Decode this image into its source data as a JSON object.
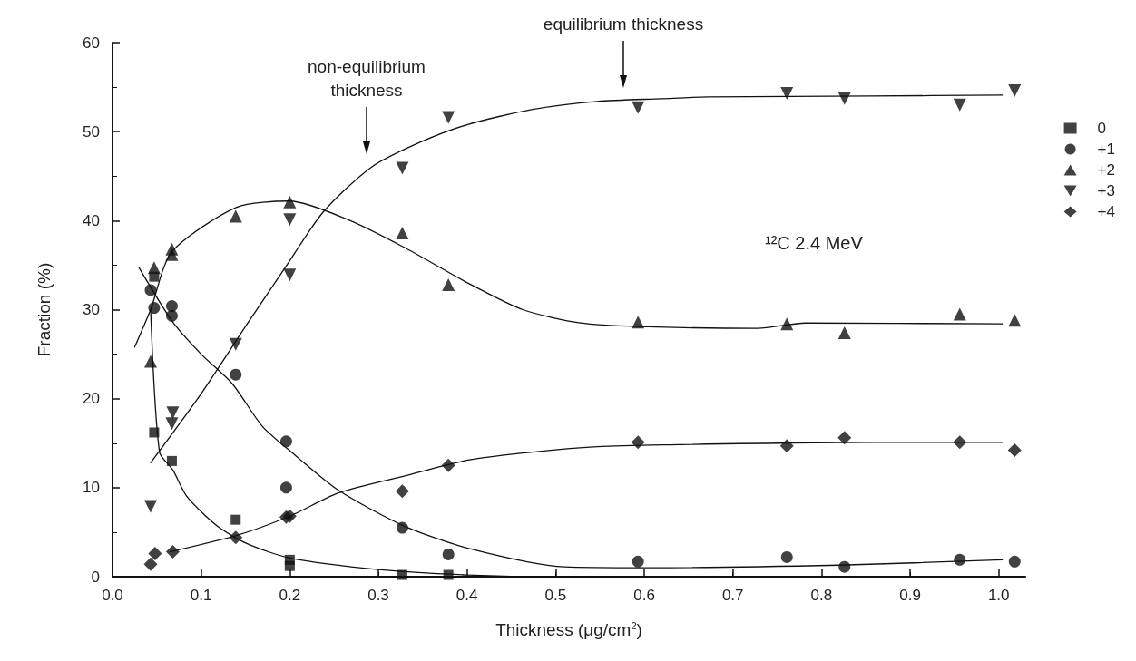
{
  "chart_data": {
    "type": "scatter",
    "xlabel": "Thickness (μg/cm$^{2}$)",
    "ylabel": "Fraction (%)",
    "xlim": [
      0,
      1.03
    ],
    "ylim": [
      0,
      60
    ],
    "xticks": [
      {
        "value": 0,
        "label": "0.0"
      },
      {
        "value": 0.1,
        "label": "0.1"
      },
      {
        "value": 0.2,
        "label": "0.2"
      },
      {
        "value": 0.3,
        "label": "0.3"
      },
      {
        "value": 0.4,
        "label": "0.4"
      },
      {
        "value": 0.5,
        "label": "0.5"
      },
      {
        "value": 0.6,
        "label": "0.6"
      },
      {
        "value": 0.7,
        "label": "0.7"
      },
      {
        "value": 0.8,
        "label": "0.8"
      },
      {
        "value": 0.9,
        "label": "0.9"
      },
      {
        "value": 1,
        "label": "1.0"
      }
    ],
    "yticks": [
      0,
      10,
      20,
      30,
      40,
      50,
      60
    ],
    "grid": false,
    "legend": "right",
    "annotations": [
      "¹²C 2.4 MeV",
      "non-equilibrium\nthickness",
      "equilibrium thickness"
    ],
    "series": [
      {
        "name": "0",
        "color": "#111111",
        "marker": "square",
        "x": [
          0.047,
          0.047,
          0.067,
          0.139,
          0.2,
          0.2,
          0.327,
          0.379
        ],
        "values": [
          33.7,
          16.2,
          13.0,
          6.4,
          1.9,
          1.2,
          0.2,
          0.2
        ]
      },
      {
        "name": "+1",
        "color": "#111111",
        "marker": "circle",
        "x": [
          0.043,
          0.047,
          0.067,
          0.067,
          0.139,
          0.196,
          0.196,
          0.327,
          0.379,
          0.593,
          0.761,
          0.826,
          0.956,
          1.018
        ],
        "values": [
          32.2,
          30.2,
          30.4,
          29.3,
          22.7,
          15.2,
          10.0,
          5.5,
          2.5,
          1.7,
          2.2,
          1.1,
          1.9,
          1.7
        ]
      },
      {
        "name": "+2",
        "color": "#111111",
        "marker": "triangle",
        "x": [
          0.043,
          0.047,
          0.067,
          0.067,
          0.139,
          0.2,
          0.327,
          0.379,
          0.593,
          0.761,
          0.826,
          0.956,
          1.018
        ],
        "values": [
          24.2,
          34.7,
          36.8,
          36.2,
          40.5,
          42.1,
          38.6,
          32.8,
          28.6,
          28.4,
          27.4,
          29.5,
          28.8
        ]
      },
      {
        "name": "+3",
        "color": "#111111",
        "marker": "triangle-down",
        "x": [
          0.043,
          0.068,
          0.067,
          0.139,
          0.2,
          0.2,
          0.327,
          0.379,
          0.593,
          0.761,
          0.826,
          0.956,
          1.018
        ],
        "values": [
          7.9,
          18.4,
          17.2,
          26.1,
          40.1,
          33.9,
          45.9,
          51.6,
          52.7,
          54.3,
          53.7,
          53.0,
          54.6
        ]
      },
      {
        "name": "+4",
        "color": "#111111",
        "marker": "diamond",
        "x": [
          0.043,
          0.048,
          0.068,
          0.139,
          0.196,
          0.2,
          0.327,
          0.379,
          0.593,
          0.761,
          0.826,
          0.956,
          1.018
        ],
        "values": [
          1.4,
          2.6,
          2.8,
          4.4,
          6.7,
          6.8,
          9.6,
          12.5,
          15.1,
          14.7,
          15.6,
          15.1,
          14.2
        ]
      },
      {
        "type": "line",
        "color": "#111111",
        "x": [
          0.043,
          0.053,
          0.068,
          0.084,
          0.118,
          0.152,
          0.2,
          0.3,
          0.4,
          0.5,
          0.6
        ],
        "values": [
          30,
          14,
          12,
          9,
          5.7,
          3.7,
          2.1,
          0.8,
          0.2,
          0,
          0
        ]
      },
      {
        "type": "line",
        "color": "#111111",
        "x": [
          0.03,
          0.068,
          0.1,
          0.135,
          0.169,
          0.203,
          0.255,
          0.329,
          0.401,
          0.51,
          0.602,
          0.82,
          1.004
        ],
        "values": [
          34.7,
          28.6,
          25,
          21.7,
          16.9,
          13.9,
          9.7,
          5.7,
          3.2,
          1.1,
          1.0,
          1.3,
          1.9
        ]
      },
      {
        "type": "line",
        "color": "#111111",
        "x": [
          0.025,
          0.043,
          0.067,
          0.14,
          0.2,
          0.266,
          0.329,
          0.401,
          0.463,
          0.528,
          0.593,
          0.728,
          0.782,
          1.004
        ],
        "values": [
          25.8,
          30,
          36.5,
          41.5,
          42.2,
          40.1,
          37,
          33,
          30,
          28.5,
          28.1,
          27.9,
          28.5,
          28.4
        ]
      },
      {
        "type": "line",
        "color": "#111111",
        "x": [
          0.043,
          0.101,
          0.152,
          0.196,
          0.238,
          0.292,
          0.347,
          0.401,
          0.474,
          0.547,
          0.62,
          0.672,
          0.855,
          1.004
        ],
        "values": [
          12.8,
          20.7,
          28.4,
          34.9,
          41,
          46,
          48.8,
          50.8,
          52.5,
          53.4,
          53.7,
          53.9,
          54.0,
          54.1
        ]
      },
      {
        "type": "line",
        "color": "#111111",
        "x": [
          0.065,
          0.139,
          0.2,
          0.255,
          0.329,
          0.401,
          0.474,
          0.547,
          0.62,
          0.855,
          1.004
        ],
        "values": [
          2.8,
          4.6,
          6.8,
          9.4,
          11.3,
          13.1,
          14.0,
          14.6,
          14.8,
          15.1,
          15.1
        ]
      }
    ]
  }
}
